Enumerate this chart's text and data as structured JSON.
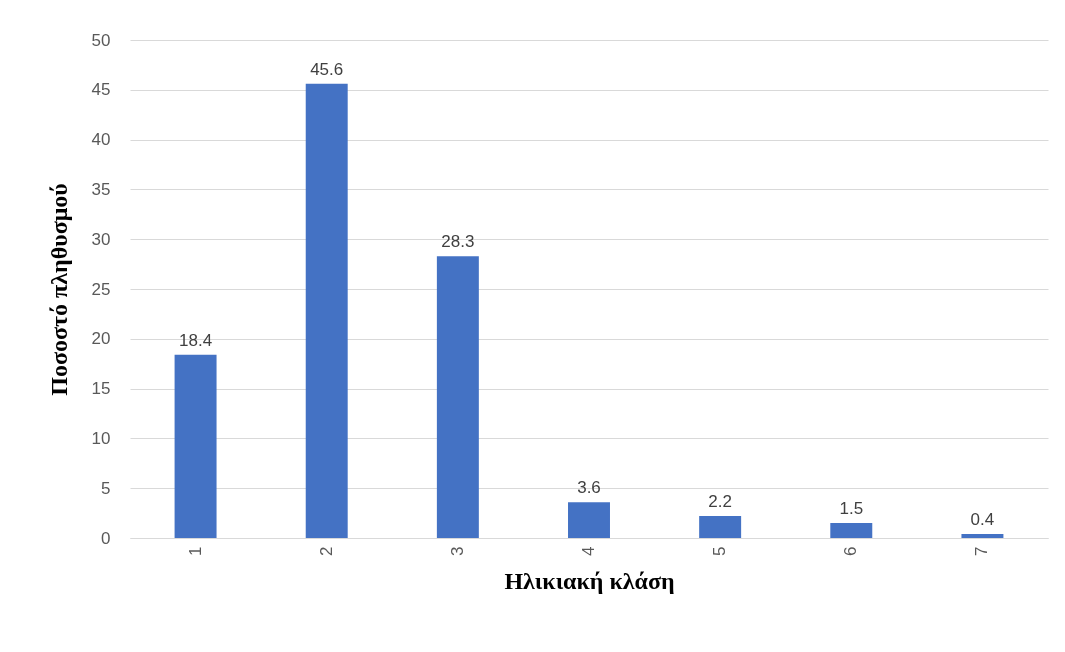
{
  "chart_data": {
    "type": "bar",
    "xlabel": "Ηλικιακή κλάση",
    "ylabel": "Ποσοστό πληθυσμού",
    "categories": [
      "1",
      "2",
      "3",
      "4",
      "5",
      "6",
      "7"
    ],
    "values": [
      18.4,
      45.6,
      28.3,
      3.6,
      2.2,
      1.5,
      0.4
    ],
    "color": "#4472c4",
    "ylim": [
      0,
      50
    ],
    "yticks": [
      0,
      5,
      10,
      15,
      20,
      25,
      30,
      35,
      40,
      45,
      50
    ],
    "grid": "y",
    "data_labels": true
  }
}
